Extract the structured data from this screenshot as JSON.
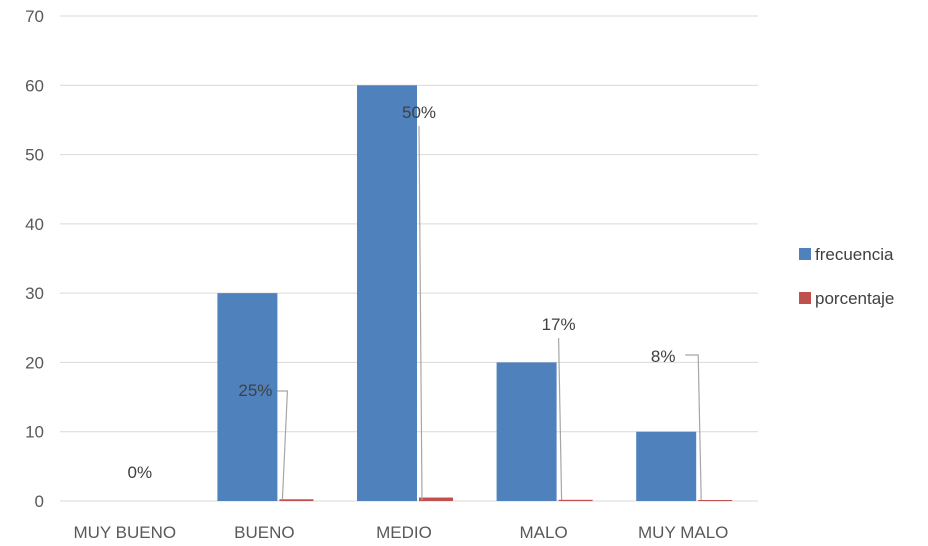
{
  "chart_data": {
    "type": "bar",
    "title": "",
    "xlabel": "",
    "ylabel": "",
    "categories": [
      "MUY BUENO",
      "BUENO",
      "MEDIO",
      "MALO",
      "MUY MALO"
    ],
    "series": [
      {
        "name": "frecuencia",
        "values": [
          0,
          30,
          60,
          20,
          10
        ],
        "color": "#4F81BD"
      },
      {
        "name": "porcentaje",
        "values": [
          0,
          0.25,
          0.5,
          0.17,
          0.08
        ],
        "color": "#C0504D"
      }
    ],
    "data_labels": [
      "0%",
      "25%",
      "50%",
      "17%",
      "8%"
    ],
    "ylim": [
      0,
      70
    ],
    "yticks": [
      "0",
      "10",
      "20",
      "30",
      "40",
      "50",
      "60",
      "70"
    ],
    "grid": true,
    "legend_position": "right"
  }
}
